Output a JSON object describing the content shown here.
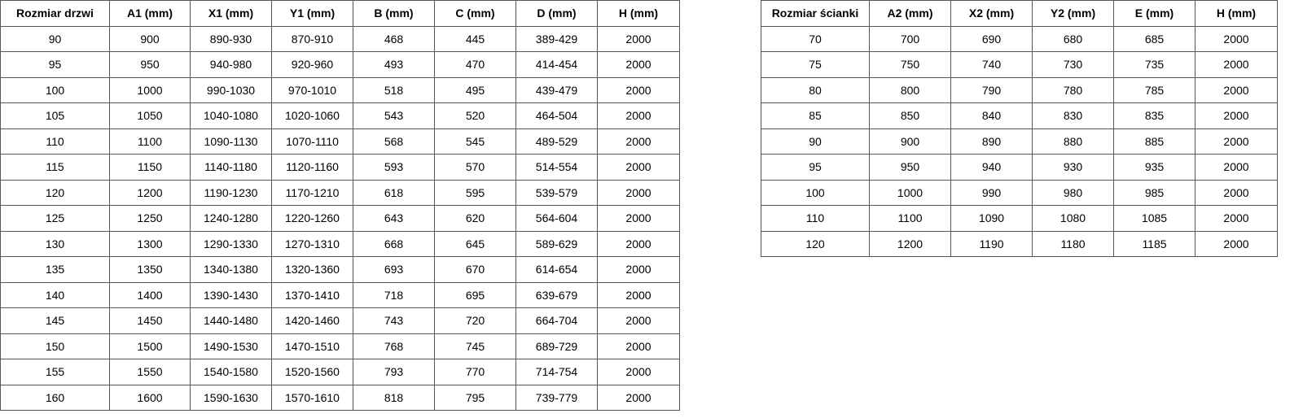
{
  "doors_table": {
    "headers": [
      "Rozmiar drzwi",
      "A1 (mm)",
      "X1 (mm)",
      "Y1 (mm)",
      "B (mm)",
      "C (mm)",
      "D (mm)",
      "H (mm)"
    ],
    "rows": [
      [
        "90",
        "900",
        "890-930",
        "870-910",
        "468",
        "445",
        "389-429",
        "2000"
      ],
      [
        "95",
        "950",
        "940-980",
        "920-960",
        "493",
        "470",
        "414-454",
        "2000"
      ],
      [
        "100",
        "1000",
        "990-1030",
        "970-1010",
        "518",
        "495",
        "439-479",
        "2000"
      ],
      [
        "105",
        "1050",
        "1040-1080",
        "1020-1060",
        "543",
        "520",
        "464-504",
        "2000"
      ],
      [
        "110",
        "1100",
        "1090-1130",
        "1070-1110",
        "568",
        "545",
        "489-529",
        "2000"
      ],
      [
        "115",
        "1150",
        "1140-1180",
        "1120-1160",
        "593",
        "570",
        "514-554",
        "2000"
      ],
      [
        "120",
        "1200",
        "1190-1230",
        "1170-1210",
        "618",
        "595",
        "539-579",
        "2000"
      ],
      [
        "125",
        "1250",
        "1240-1280",
        "1220-1260",
        "643",
        "620",
        "564-604",
        "2000"
      ],
      [
        "130",
        "1300",
        "1290-1330",
        "1270-1310",
        "668",
        "645",
        "589-629",
        "2000"
      ],
      [
        "135",
        "1350",
        "1340-1380",
        "1320-1360",
        "693",
        "670",
        "614-654",
        "2000"
      ],
      [
        "140",
        "1400",
        "1390-1430",
        "1370-1410",
        "718",
        "695",
        "639-679",
        "2000"
      ],
      [
        "145",
        "1450",
        "1440-1480",
        "1420-1460",
        "743",
        "720",
        "664-704",
        "2000"
      ],
      [
        "150",
        "1500",
        "1490-1530",
        "1470-1510",
        "768",
        "745",
        "689-729",
        "2000"
      ],
      [
        "155",
        "1550",
        "1540-1580",
        "1520-1560",
        "793",
        "770",
        "714-754",
        "2000"
      ],
      [
        "160",
        "1600",
        "1590-1630",
        "1570-1610",
        "818",
        "795",
        "739-779",
        "2000"
      ]
    ]
  },
  "walls_table": {
    "headers": [
      "Rozmiar ścianki",
      "A2 (mm)",
      "X2 (mm)",
      "Y2 (mm)",
      "E (mm)",
      "H (mm)"
    ],
    "rows": [
      [
        "70",
        "700",
        "690",
        "680",
        "685",
        "2000"
      ],
      [
        "75",
        "750",
        "740",
        "730",
        "735",
        "2000"
      ],
      [
        "80",
        "800",
        "790",
        "780",
        "785",
        "2000"
      ],
      [
        "85",
        "850",
        "840",
        "830",
        "835",
        "2000"
      ],
      [
        "90",
        "900",
        "890",
        "880",
        "885",
        "2000"
      ],
      [
        "95",
        "950",
        "940",
        "930",
        "935",
        "2000"
      ],
      [
        "100",
        "1000",
        "990",
        "980",
        "985",
        "2000"
      ],
      [
        "110",
        "1100",
        "1090",
        "1080",
        "1085",
        "2000"
      ],
      [
        "120",
        "1200",
        "1190",
        "1180",
        "1185",
        "2000"
      ]
    ]
  }
}
